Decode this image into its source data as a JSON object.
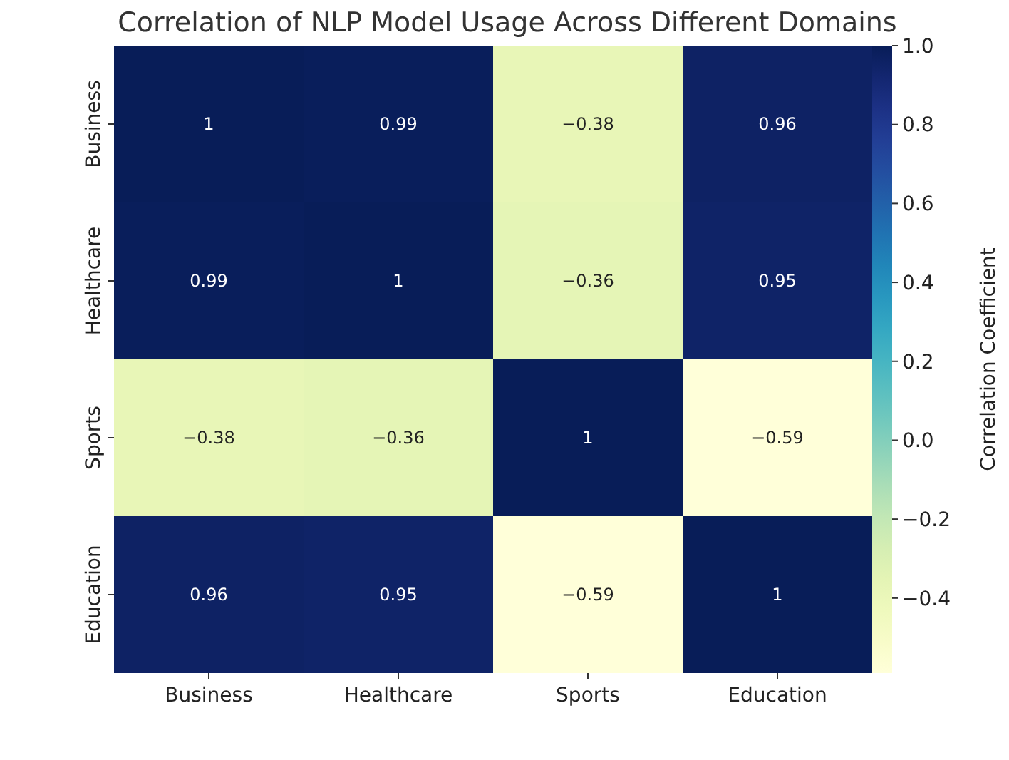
{
  "chart_data": {
    "type": "heatmap",
    "title": "Correlation of NLP Model Usage Across Different Domains",
    "clabel": "Correlation Coefficient",
    "categories": [
      "Business",
      "Healthcare",
      "Sports",
      "Education"
    ],
    "y_categories": [
      "Business",
      "Healthcare",
      "Sports",
      "Education"
    ],
    "cells": [
      [
        1,
        0.99,
        -0.38,
        0.96
      ],
      [
        0.99,
        1,
        -0.36,
        0.95
      ],
      [
        -0.38,
        -0.36,
        1,
        -0.59
      ],
      [
        0.96,
        0.95,
        -0.59,
        1
      ]
    ],
    "data_labels": true,
    "clim": [
      -0.59,
      1.0
    ],
    "cticks": [
      {
        "value": -0.4,
        "label": "−0.4"
      },
      {
        "value": -0.2,
        "label": "−0.2"
      },
      {
        "value": 0,
        "label": "0.0"
      },
      {
        "value": 0.2,
        "label": "0.2"
      },
      {
        "value": 0.4,
        "label": "0.4"
      },
      {
        "value": 0.6,
        "label": "0.6"
      },
      {
        "value": 0.8,
        "label": "0.8"
      },
      {
        "value": 1.0,
        "label": "1.0"
      }
    ]
  }
}
